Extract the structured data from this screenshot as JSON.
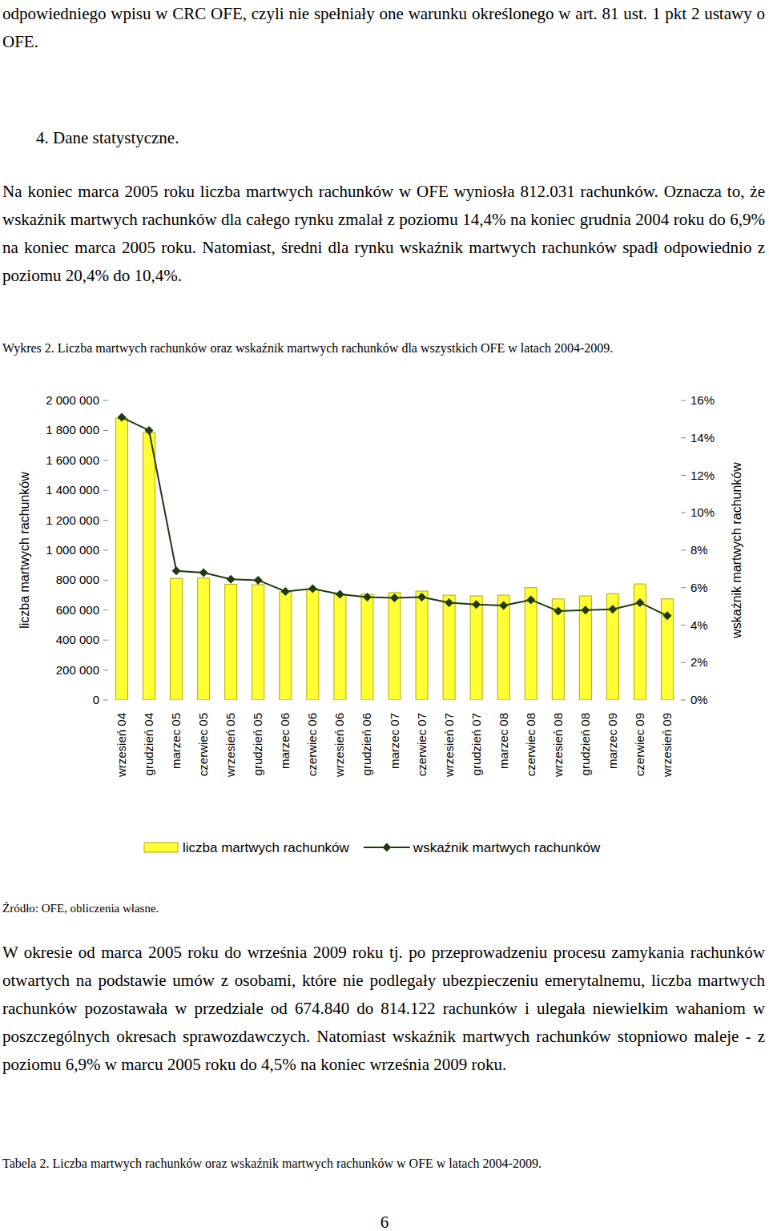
{
  "page": {
    "intro_paragraph": "odpowiedniego wpisu w CRC OFE, czyli nie spełniały one warunku określonego w art. 81 ust. 1 pkt 2 ustawy o OFE.",
    "section_heading": "4. Dane statystyczne.",
    "paragraph_1": "Na koniec marca 2005 roku liczba martwych rachunków w OFE wyniosła 812.031 rachunków. Oznacza to, że wskaźnik martwych rachunków dla całego rynku zmalał z poziomu 14,4% na koniec grudnia 2004 roku do 6,9% na koniec marca 2005 roku. Natomiast, średni dla rynku wskaźnik martwych rachunków spadł odpowiednio z poziomu 20,4% do 10,4%.",
    "figure_caption": "Wykres 2. Liczba martwych rachunków oraz wskaźnik martwych rachunków dla wszystkich OFE w latach 2004-2009.",
    "source": "Źródło: OFE, obliczenia własne.",
    "paragraph_2": "W okresie od marca 2005 roku do września 2009 roku tj. po przeprowadzeniu procesu zamykania rachunków otwartych na podstawie umów z osobami, które nie podlegały ubezpieczeniu emerytalnemu, liczba martwych rachunków pozostawała w przedziale od 674.840 do 814.122 rachunków i ulegała niewielkim wahaniom w poszczególnych okresach sprawozdawczych. Natomiast wskaźnik martwych rachunków stopniowo maleje - z poziomu 6,9% w marcu 2005 roku do 4,5% na koniec września 2009 roku.",
    "table_caption": "Tabela 2. Liczba martwych rachunków oraz wskaźnik martwych rachunków w OFE w latach 2004-2009.",
    "page_number": "6"
  },
  "chart_data": {
    "type": "bar",
    "y_label": "liczba martwych rachunków",
    "y2_label": "wskaźnik martwych rachunków",
    "categories": [
      "wrzesień 04",
      "grudzień 04",
      "marzec 05",
      "czerwiec 05",
      "wrzesień 05",
      "grudzień 05",
      "marzec 06",
      "czerwiec 06",
      "wrzesień 06",
      "grudzień 06",
      "marzec 07",
      "czerwiec 07",
      "wrzesień 07",
      "grudzień 07",
      "marzec 08",
      "czerwiec 08",
      "wrzesień 08",
      "grudzień 08",
      "marzec 09",
      "czerwiec 09",
      "wrzesień 09"
    ],
    "series": [
      {
        "name": "liczba martwych rachunków",
        "type": "bar",
        "color": "#ffff33",
        "values": [
          1882000,
          1786000,
          812031,
          814122,
          772000,
          770000,
          722000,
          740000,
          705000,
          705000,
          717000,
          727000,
          700000,
          695000,
          700000,
          750000,
          674840,
          695000,
          710000,
          775000,
          675000
        ]
      },
      {
        "name": "wskaźnik martwych rachunków",
        "type": "line",
        "axis": "y2",
        "color": "#1f3a10",
        "marker": "diamond",
        "line_style": "solid",
        "values": [
          15.1,
          14.4,
          6.9,
          6.8,
          6.45,
          6.4,
          5.8,
          5.95,
          5.65,
          5.5,
          5.45,
          5.5,
          5.2,
          5.1,
          5.05,
          5.35,
          4.75,
          4.8,
          4.85,
          5.2,
          4.5
        ]
      }
    ],
    "ylim": [
      0,
      2000000
    ],
    "yticks": [
      0,
      {
        "value": 200000,
        "label": "200 000"
      },
      {
        "value": 400000,
        "label": "400 000"
      },
      {
        "value": 600000,
        "label": "600 000"
      },
      {
        "value": 800000,
        "label": "800 000"
      },
      {
        "value": 1000000,
        "label": "1 000 000"
      },
      {
        "value": 1200000,
        "label": "1 200 000"
      },
      {
        "value": 1400000,
        "label": "1 400 000"
      },
      {
        "value": 1600000,
        "label": "1 600 000"
      },
      {
        "value": 1800000,
        "label": "1 800 000"
      },
      {
        "value": 2000000,
        "label": "2 000 000"
      }
    ],
    "y2lim": [
      0,
      16
    ],
    "y2ticks": [
      {
        "value": 0,
        "label": "0%"
      },
      {
        "value": 2,
        "label": "2%"
      },
      {
        "value": 4,
        "label": "4%"
      },
      {
        "value": 6,
        "label": "6%"
      },
      {
        "value": 8,
        "label": "8%"
      },
      {
        "value": 10,
        "label": "10%"
      },
      {
        "value": 12,
        "label": "12%"
      },
      {
        "value": 14,
        "label": "14%"
      },
      {
        "value": 16,
        "label": "16%"
      }
    ],
    "grid": false,
    "legend": "bottom"
  }
}
